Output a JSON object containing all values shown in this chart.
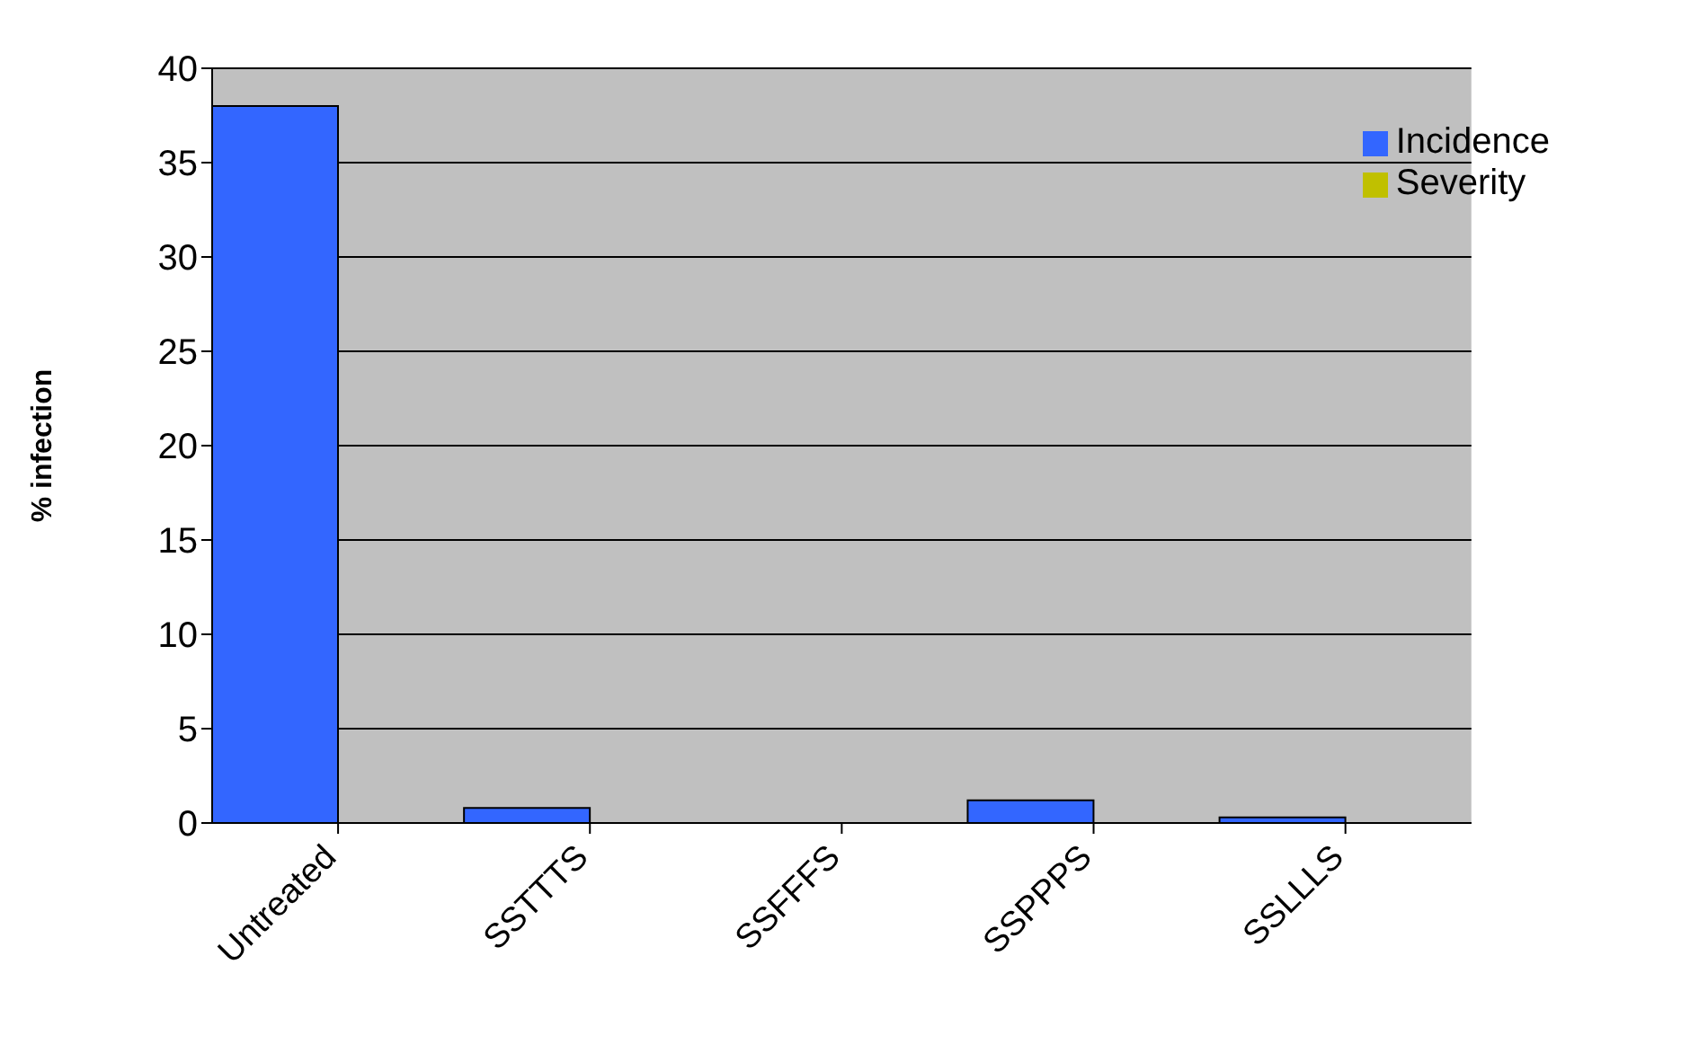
{
  "chart_data": {
    "type": "bar",
    "ylabel": "% infection",
    "categories": [
      "Untreated",
      "SSTTTS",
      "SSFFFS",
      "SSPPPS",
      "SSLLLS"
    ],
    "series": [
      {
        "name": "Incidence",
        "color": "#3366ff",
        "values": [
          38,
          0.8,
          0,
          1.2,
          0.3
        ]
      },
      {
        "name": "Severity",
        "color": "#c0c000",
        "values": [
          0,
          0,
          0,
          0,
          0
        ]
      }
    ],
    "ylim": [
      0,
      40
    ],
    "yticks": [
      0,
      5,
      10,
      15,
      20,
      25,
      30,
      35,
      40
    ],
    "grid": "y",
    "legend": "top right"
  }
}
